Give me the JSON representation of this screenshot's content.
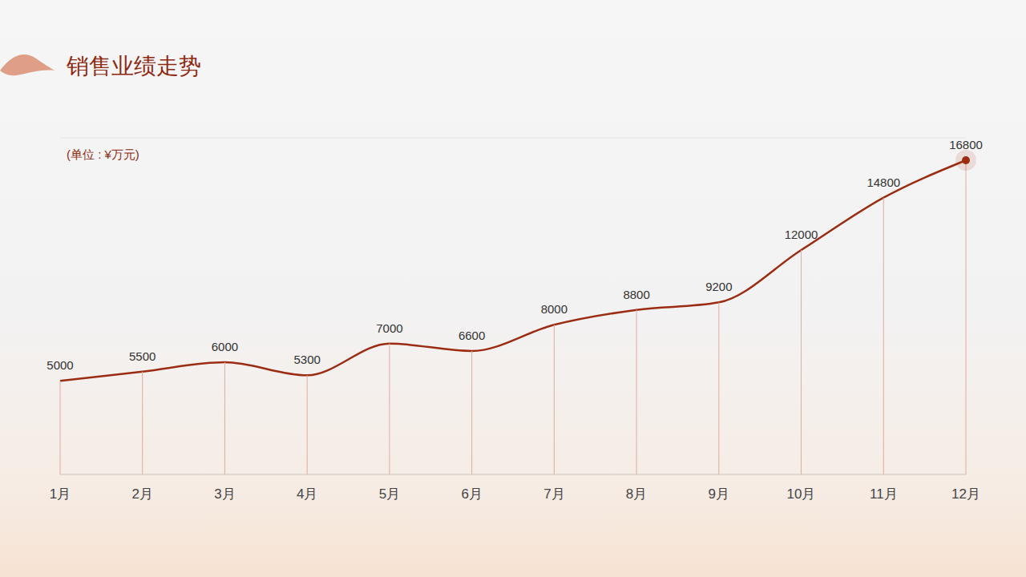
{
  "chart_data": {
    "type": "line",
    "title": "销售业绩走势",
    "subtitle": "(单位 : ¥万元)",
    "categories": [
      "1月",
      "2月",
      "3月",
      "4月",
      "5月",
      "6月",
      "7月",
      "8月",
      "9月",
      "10月",
      "11月",
      "12月"
    ],
    "values": [
      5000,
      5500,
      6000,
      5300,
      7000,
      6600,
      8000,
      8800,
      9200,
      12000,
      14800,
      16800
    ],
    "color": "#9b2c12",
    "ylim": [
      0,
      18000
    ],
    "yticks": [
      0,
      2000,
      4000,
      6000,
      8000,
      10000,
      12000,
      14000,
      16000,
      18000
    ],
    "grid": true,
    "data_labels": true,
    "tick_labels": "x",
    "line_style": "solid"
  }
}
